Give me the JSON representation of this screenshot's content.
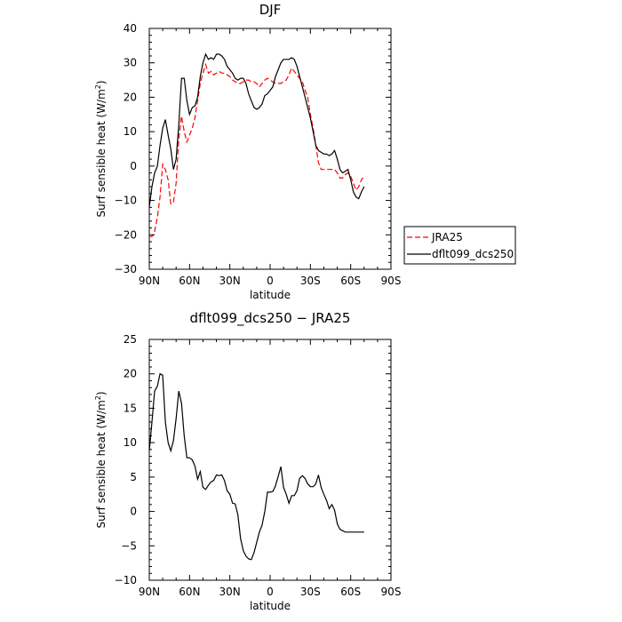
{
  "chart_data": [
    {
      "type": "line",
      "title": "DJF",
      "xlabel": "latitude",
      "ylabel": "Surf sensible heat (W/m",
      "ylabel_sup": "2",
      "ylabel_end": ")",
      "xlim": [
        90,
        -90
      ],
      "ylim": [
        -30,
        40
      ],
      "xticks": [
        90,
        60,
        30,
        0,
        -30,
        -60,
        -90
      ],
      "xtick_labels": [
        "90N",
        "60N",
        "30N",
        "0",
        "30S",
        "60S",
        "90S"
      ],
      "yticks": [
        -30,
        -20,
        -10,
        0,
        10,
        20,
        30,
        40
      ],
      "ytick_labels": [
        "−30",
        "−20",
        "−10",
        "0",
        "10",
        "20",
        "30",
        "40"
      ],
      "legend": "right",
      "series": [
        {
          "name": "JRA25",
          "color": "#ff0000",
          "dash": "dashed",
          "points": [
            [
              90,
              -20.5
            ],
            [
              88,
              -20.5
            ],
            [
              86,
              -19
            ],
            [
              84,
              -15
            ],
            [
              82,
              -9
            ],
            [
              80,
              0.5
            ],
            [
              78,
              -1
            ],
            [
              76,
              -4
            ],
            [
              74,
              -11
            ],
            [
              72,
              -10.5
            ],
            [
              70,
              -5
            ],
            [
              68,
              8
            ],
            [
              66,
              14.5
            ],
            [
              64,
              10
            ],
            [
              62,
              7
            ],
            [
              60,
              9
            ],
            [
              58,
              11
            ],
            [
              56,
              14
            ],
            [
              54,
              19
            ],
            [
              52,
              24
            ],
            [
              50,
              27
            ],
            [
              48,
              29.5
            ],
            [
              46,
              27
            ],
            [
              44,
              27.5
            ],
            [
              42,
              26.5
            ],
            [
              40,
              27
            ],
            [
              38,
              27.5
            ],
            [
              36,
              27
            ],
            [
              34,
              27
            ],
            [
              32,
              26.5
            ],
            [
              30,
              26
            ],
            [
              28,
              25
            ],
            [
              26,
              24.5
            ],
            [
              24,
              24
            ],
            [
              22,
              24
            ],
            [
              20,
              24.5
            ],
            [
              18,
              25
            ],
            [
              16,
              25
            ],
            [
              14,
              24.5
            ],
            [
              12,
              24.5
            ],
            [
              10,
              24
            ],
            [
              8,
              23
            ],
            [
              6,
              24
            ],
            [
              4,
              25
            ],
            [
              2,
              25.5
            ],
            [
              0,
              25
            ],
            [
              -2,
              24.5
            ],
            [
              -4,
              24
            ],
            [
              -6,
              24
            ],
            [
              -8,
              24
            ],
            [
              -10,
              24.5
            ],
            [
              -12,
              25
            ],
            [
              -14,
              26.5
            ],
            [
              -16,
              28.5
            ],
            [
              -18,
              27.5
            ],
            [
              -20,
              26.5
            ],
            [
              -22,
              25.5
            ],
            [
              -24,
              24.5
            ],
            [
              -26,
              22
            ],
            [
              -28,
              20
            ],
            [
              -30,
              15
            ],
            [
              -32,
              11
            ],
            [
              -34,
              6
            ],
            [
              -36,
              1
            ],
            [
              -38,
              -1
            ],
            [
              -40,
              -1
            ],
            [
              -42,
              -1
            ],
            [
              -44,
              -1
            ],
            [
              -46,
              -1
            ],
            [
              -48,
              -1
            ],
            [
              -50,
              -2
            ],
            [
              -52,
              -3.5
            ],
            [
              -54,
              -3.5
            ],
            [
              -56,
              -2.5
            ],
            [
              -58,
              -2
            ],
            [
              -60,
              -3
            ],
            [
              -62,
              -5
            ],
            [
              -64,
              -7
            ],
            [
              -66,
              -6
            ],
            [
              -68,
              -4
            ],
            [
              -70,
              -3
            ]
          ]
        },
        {
          "name": "dflt099_dcs250",
          "color": "#000000",
          "dash": "solid",
          "points": [
            [
              90,
              -12
            ],
            [
              88,
              -6
            ],
            [
              86,
              -2
            ],
            [
              84,
              0
            ],
            [
              82,
              6
            ],
            [
              80,
              11
            ],
            [
              78,
              13.5
            ],
            [
              76,
              9
            ],
            [
              74,
              5
            ],
            [
              72,
              -1
            ],
            [
              70,
              2
            ],
            [
              68,
              12
            ],
            [
              66,
              25.5
            ],
            [
              64,
              25.5
            ],
            [
              62,
              19
            ],
            [
              60,
              15
            ],
            [
              58,
              17
            ],
            [
              56,
              17.5
            ],
            [
              54,
              20
            ],
            [
              52,
              26
            ],
            [
              50,
              30
            ],
            [
              48,
              32.5
            ],
            [
              46,
              31
            ],
            [
              44,
              31.5
            ],
            [
              42,
              31
            ],
            [
              40,
              32.5
            ],
            [
              38,
              32.5
            ],
            [
              36,
              32
            ],
            [
              34,
              31
            ],
            [
              32,
              29
            ],
            [
              30,
              28
            ],
            [
              28,
              27
            ],
            [
              26,
              25.5
            ],
            [
              24,
              25
            ],
            [
              22,
              25.5
            ],
            [
              20,
              25.5
            ],
            [
              18,
              24
            ],
            [
              16,
              21
            ],
            [
              14,
              19
            ],
            [
              12,
              17
            ],
            [
              10,
              16.5
            ],
            [
              8,
              17
            ],
            [
              6,
              18
            ],
            [
              4,
              20.5
            ],
            [
              2,
              21
            ],
            [
              0,
              22
            ],
            [
              -2,
              23
            ],
            [
              -4,
              26
            ],
            [
              -6,
              28
            ],
            [
              -8,
              30
            ],
            [
              -10,
              31
            ],
            [
              -12,
              31
            ],
            [
              -14,
              31
            ],
            [
              -16,
              31.5
            ],
            [
              -18,
              31
            ],
            [
              -20,
              29
            ],
            [
              -22,
              26
            ],
            [
              -24,
              23
            ],
            [
              -26,
              20
            ],
            [
              -28,
              17
            ],
            [
              -30,
              14
            ],
            [
              -32,
              10
            ],
            [
              -34,
              6
            ],
            [
              -36,
              4.5
            ],
            [
              -38,
              4
            ],
            [
              -40,
              3.5
            ],
            [
              -42,
              3.5
            ],
            [
              -44,
              3
            ],
            [
              -46,
              3.5
            ],
            [
              -48,
              4.5
            ],
            [
              -50,
              2
            ],
            [
              -52,
              -1
            ],
            [
              -54,
              -2
            ],
            [
              -56,
              -1.5
            ],
            [
              -58,
              -1
            ],
            [
              -60,
              -4
            ],
            [
              -62,
              -7.5
            ],
            [
              -64,
              -9
            ],
            [
              -66,
              -9.5
            ],
            [
              -68,
              -7.5
            ],
            [
              -70,
              -6
            ]
          ]
        }
      ]
    },
    {
      "type": "line",
      "title": "dflt099_dcs250 − JRA25",
      "xlabel": "latitude",
      "ylabel": "Surf sensible heat (W/m",
      "ylabel_sup": "2",
      "ylabel_end": ")",
      "xlim": [
        90,
        -90
      ],
      "ylim": [
        -10,
        25
      ],
      "xticks": [
        90,
        60,
        30,
        0,
        -30,
        -60,
        -90
      ],
      "xtick_labels": [
        "90N",
        "60N",
        "30N",
        "0",
        "30S",
        "60S",
        "90S"
      ],
      "yticks": [
        -10,
        -5,
        0,
        5,
        10,
        15,
        20,
        25
      ],
      "ytick_labels": [
        "−10",
        "−5",
        "0",
        "5",
        "10",
        "15",
        "20",
        "25"
      ],
      "series": [
        {
          "color": "#000000",
          "dash": "solid",
          "points": [
            [
              90,
              8.8
            ],
            [
              88,
              13
            ],
            [
              86,
              17.5
            ],
            [
              84,
              18.2
            ],
            [
              82,
              20
            ],
            [
              80,
              19.8
            ],
            [
              78,
              13
            ],
            [
              76,
              10
            ],
            [
              74,
              8.8
            ],
            [
              72,
              10.3
            ],
            [
              70,
              13.5
            ],
            [
              68,
              17.5
            ],
            [
              66,
              15.7
            ],
            [
              64,
              11
            ],
            [
              62,
              7.8
            ],
            [
              60,
              7.8
            ],
            [
              58,
              7.5
            ],
            [
              56,
              6.6
            ],
            [
              54,
              4.7
            ],
            [
              52,
              5.8
            ],
            [
              50,
              3.5
            ],
            [
              48,
              3.2
            ],
            [
              46,
              3.8
            ],
            [
              44,
              4.3
            ],
            [
              42,
              4.5
            ],
            [
              40,
              5.3
            ],
            [
              38,
              5.2
            ],
            [
              36,
              5.3
            ],
            [
              34,
              4.5
            ],
            [
              32,
              3
            ],
            [
              30,
              2.5
            ],
            [
              28,
              1.2
            ],
            [
              26,
              1.1
            ],
            [
              24,
              -0.5
            ],
            [
              22,
              -4
            ],
            [
              20,
              -5.7
            ],
            [
              18,
              -6.5
            ],
            [
              16,
              -6.9
            ],
            [
              14,
              -7
            ],
            [
              12,
              -6
            ],
            [
              10,
              -4.5
            ],
            [
              8,
              -3
            ],
            [
              6,
              -2
            ],
            [
              4,
              0
            ],
            [
              2,
              2.8
            ],
            [
              0,
              2.8
            ],
            [
              -2,
              2.9
            ],
            [
              -4,
              3.7
            ],
            [
              -6,
              5.1
            ],
            [
              -8,
              6.5
            ],
            [
              -10,
              3.5
            ],
            [
              -12,
              2.5
            ],
            [
              -14,
              1.2
            ],
            [
              -16,
              2.3
            ],
            [
              -18,
              2.3
            ],
            [
              -20,
              3
            ],
            [
              -22,
              4.8
            ],
            [
              -24,
              5.2
            ],
            [
              -26,
              4.8
            ],
            [
              -28,
              4
            ],
            [
              -30,
              3.6
            ],
            [
              -32,
              3.6
            ],
            [
              -34,
              4
            ],
            [
              -36,
              5.3
            ],
            [
              -38,
              3.5
            ],
            [
              -40,
              2.5
            ],
            [
              -42,
              1.6
            ],
            [
              -44,
              0.4
            ],
            [
              -46,
              1
            ],
            [
              -48,
              0.2
            ],
            [
              -50,
              -1.8
            ],
            [
              -52,
              -2.6
            ],
            [
              -54,
              -2.8
            ],
            [
              -56,
              -3
            ],
            [
              -58,
              -3
            ],
            [
              -60,
              -3
            ],
            [
              -62,
              -3
            ],
            [
              -64,
              -3
            ],
            [
              -66,
              -3
            ],
            [
              -68,
              -3
            ],
            [
              -70,
              -3
            ]
          ]
        }
      ]
    }
  ]
}
